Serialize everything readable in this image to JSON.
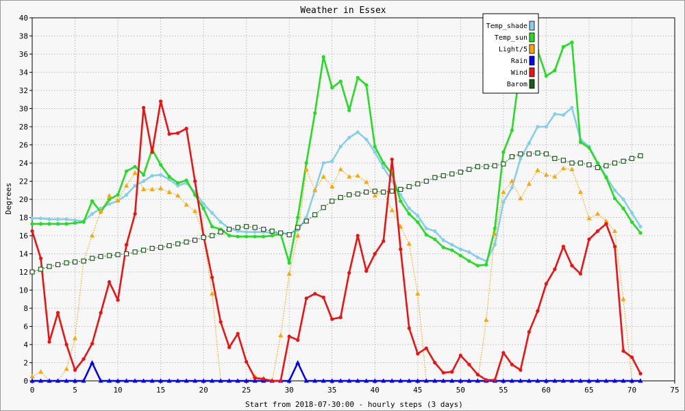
{
  "chart_data": {
    "type": "line",
    "title": "Weather in Essex",
    "xlabel": "Start from 2018-07-30:00 - hourly steps (3 days)",
    "ylabel": "Degrees",
    "xlim": [
      0,
      75
    ],
    "ylim": [
      0,
      40
    ],
    "x_ticks": [
      0,
      5,
      10,
      15,
      20,
      25,
      30,
      35,
      40,
      45,
      50,
      55,
      60,
      65,
      70,
      75
    ],
    "y_ticks": [
      0,
      2,
      4,
      6,
      8,
      10,
      12,
      14,
      16,
      18,
      20,
      22,
      24,
      26,
      28,
      30,
      32,
      34,
      36,
      38,
      40
    ],
    "grid": true,
    "legend_position": "top-right",
    "series": [
      {
        "name": "Temp_shade",
        "color": "#87ceeb",
        "marker": "circle",
        "style": "solid",
        "values": [
          17.9,
          17.9,
          17.8,
          17.8,
          17.8,
          17.7,
          17.6,
          18.4,
          19.0,
          19.5,
          19.8,
          20.5,
          21.5,
          22.0,
          22.6,
          22.7,
          22.2,
          21.5,
          21.8,
          20.8,
          19.5,
          18.5,
          17.5,
          16.8,
          16.5,
          16.4,
          16.4,
          16.4,
          16.3,
          16.3,
          16.2,
          16.6,
          18.0,
          21.0,
          24.0,
          24.2,
          25.8,
          26.8,
          27.4,
          26.6,
          25.2,
          23.5,
          22.0,
          20.5,
          19.0,
          18.2,
          16.8,
          16.5,
          15.5,
          15.0,
          14.5,
          14.2,
          13.6,
          13.2,
          15.0,
          19.7,
          21.3,
          24.5,
          26.2,
          28.0,
          28.0,
          29.4,
          29.3,
          30.1,
          26.6,
          25.8,
          24.0,
          22.5,
          21.0,
          20.0,
          18.5,
          17.0
        ]
      },
      {
        "name": "Temp_sun",
        "color": "#22dd22",
        "marker": "circle",
        "style": "solid",
        "values": [
          17.3,
          17.3,
          17.3,
          17.3,
          17.3,
          17.4,
          17.5,
          19.8,
          18.6,
          20.0,
          20.5,
          23.1,
          23.6,
          22.7,
          25.5,
          23.8,
          22.5,
          21.8,
          22.1,
          20.5,
          19.0,
          17.0,
          16.7,
          16.0,
          15.9,
          15.9,
          15.9,
          15.9,
          16.0,
          16.2,
          13.0,
          18.0,
          24.0,
          29.5,
          35.7,
          32.3,
          33.0,
          29.8,
          33.4,
          32.6,
          25.8,
          24.0,
          22.8,
          19.8,
          18.4,
          17.5,
          16.1,
          15.6,
          14.7,
          14.4,
          13.8,
          13.2,
          12.7,
          12.8,
          16.8,
          25.2,
          27.6,
          34.8,
          37.4,
          36.4,
          33.6,
          34.2,
          36.8,
          37.3,
          26.3,
          25.7,
          24.0,
          22.4,
          20.1,
          19.0,
          17.5,
          16.3
        ]
      },
      {
        "name": "Light/5",
        "color": "#ffa500",
        "marker": "triangle",
        "style": "dotted",
        "values": [
          0.5,
          1.0,
          0.0,
          0.0,
          1.3,
          4.7,
          13.2,
          16.0,
          18.7,
          20.4,
          19.9,
          21.5,
          22.9,
          21.1,
          21.1,
          21.2,
          20.8,
          20.4,
          19.4,
          18.7,
          16.0,
          9.6,
          0.0,
          0.0,
          0.0,
          0.0,
          0.5,
          0.3,
          0.0,
          5.0,
          11.8,
          16.0,
          23.3,
          21.0,
          22.5,
          21.4,
          23.3,
          22.5,
          22.6,
          21.9,
          20.4,
          20.8,
          18.8,
          17.0,
          15.1,
          9.6,
          0.0,
          0.0,
          0.0,
          0.0,
          0.0,
          0.0,
          0.0,
          6.7,
          16.2,
          20.8,
          22.0,
          20.1,
          21.7,
          23.2,
          22.7,
          22.5,
          23.4,
          23.3,
          20.8,
          17.9,
          18.4,
          17.6,
          16.5,
          9.0,
          0.0,
          0.0
        ]
      },
      {
        "name": "Rain",
        "color": "#0000ff",
        "marker": "triangle",
        "style": "solid",
        "values": [
          0,
          0,
          0,
          0,
          0,
          0,
          0,
          2.0,
          0,
          0,
          0,
          0,
          0,
          0,
          0,
          0,
          0,
          0,
          0,
          0,
          0,
          0,
          0,
          0,
          0,
          0,
          0,
          0,
          0,
          0,
          0,
          2.0,
          0,
          0,
          0,
          0,
          0,
          0,
          0,
          0,
          0,
          0,
          0,
          0,
          0,
          0,
          0,
          0,
          0,
          0,
          0,
          0,
          0,
          0,
          0,
          0,
          0,
          0,
          0,
          0,
          0,
          0,
          0,
          0,
          0,
          0,
          0,
          0,
          0,
          0,
          0,
          0
        ]
      },
      {
        "name": "Wind",
        "color": "#ee1111",
        "marker": "circle",
        "style": "solid",
        "values": [
          16.5,
          13.5,
          4.3,
          7.5,
          4.0,
          1.2,
          2.4,
          4.1,
          7.5,
          10.9,
          8.9,
          15.0,
          18.4,
          30.1,
          25.2,
          30.8,
          27.2,
          27.3,
          27.8,
          22.0,
          16.0,
          11.4,
          6.5,
          3.7,
          5.2,
          2.1,
          0.3,
          0.2,
          0.0,
          0.0,
          4.9,
          4.5,
          9.1,
          9.6,
          9.2,
          6.8,
          7.0,
          11.9,
          16.0,
          12.1,
          14.0,
          15.4,
          24.4,
          14.5,
          5.8,
          3.0,
          3.6,
          2.0,
          0.9,
          1.0,
          2.8,
          1.8,
          0.7,
          0.1,
          0.1,
          3.1,
          1.8,
          1.2,
          5.4,
          7.7,
          10.7,
          12.3,
          14.8,
          12.7,
          11.8,
          15.6,
          16.5,
          17.3,
          14.8,
          3.3,
          2.6,
          0.8
        ]
      },
      {
        "name": "Barom",
        "color": "#1a5c1a",
        "marker": "square",
        "style": "dotted",
        "values": [
          12.0,
          12.3,
          12.6,
          12.8,
          13.0,
          13.1,
          13.2,
          13.5,
          13.7,
          13.8,
          13.9,
          14.0,
          14.2,
          14.4,
          14.6,
          14.7,
          14.9,
          15.1,
          15.3,
          15.5,
          15.8,
          16.0,
          16.4,
          16.7,
          16.9,
          17.0,
          16.9,
          16.7,
          16.5,
          16.3,
          16.1,
          16.9,
          17.6,
          18.3,
          19.1,
          19.8,
          20.2,
          20.5,
          20.6,
          20.8,
          20.9,
          20.8,
          20.9,
          21.1,
          21.4,
          21.7,
          22.0,
          22.4,
          22.6,
          22.8,
          23.0,
          23.3,
          23.6,
          23.6,
          23.7,
          23.9,
          24.7,
          25.0,
          25.0,
          25.1,
          25.0,
          24.5,
          24.3,
          24.0,
          24.0,
          23.8,
          23.5,
          23.7,
          24.0,
          24.2,
          24.5,
          24.8
        ]
      }
    ]
  }
}
